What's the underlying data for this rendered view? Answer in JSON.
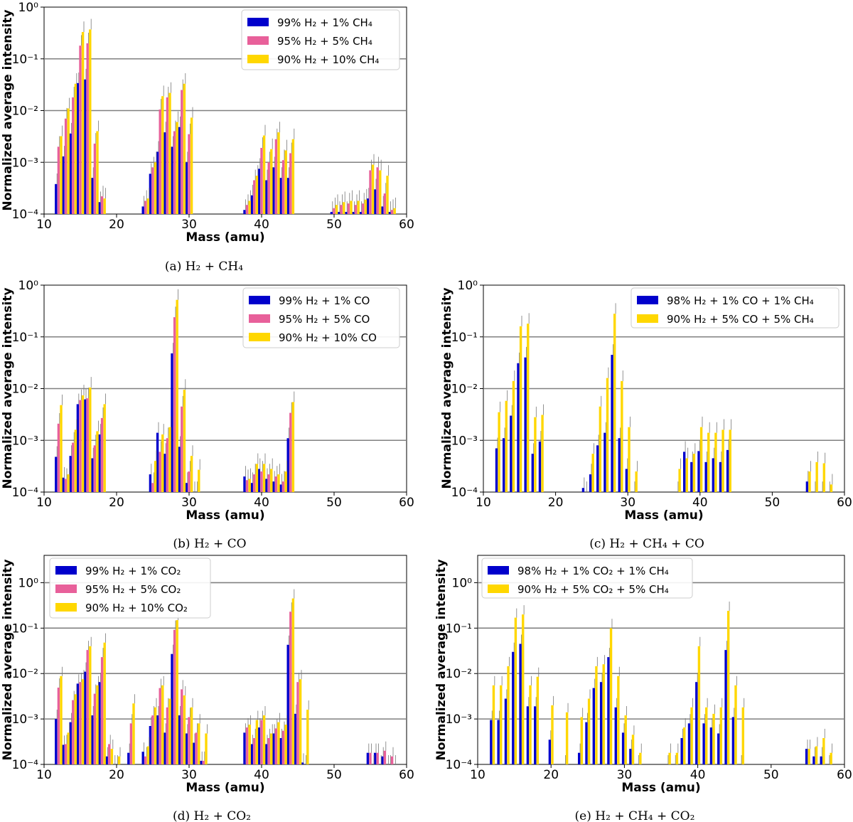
{
  "chart_data": [
    {
      "id": "a",
      "type": "bar",
      "caption": "(a) H₂ + CH₄",
      "xlabel": "Mass (amu)",
      "ylabel": "Normalized average intensity",
      "yscale": "log",
      "xlim": [
        10,
        60
      ],
      "ylim": [
        0.0001,
        1
      ],
      "xticks": [
        "10",
        "20",
        "30",
        "40",
        "50",
        "60"
      ],
      "yticks": [
        "10⁻⁴",
        "10⁻³",
        "10⁻²",
        "10⁻¹",
        "10⁰"
      ],
      "legend_position": "top-right",
      "series": [
        {
          "name": "99% H₂ + 1% CH₄",
          "color": "#0000cc",
          "x": [
            12,
            13,
            14,
            15,
            16,
            17,
            18,
            24,
            25,
            26,
            27,
            28,
            29,
            30,
            38,
            39,
            40,
            41,
            42,
            43,
            44,
            50,
            51,
            52,
            53,
            54,
            55,
            56,
            57,
            58
          ],
          "values": [
            0.00038,
            0.0013,
            0.0036,
            0.034,
            0.04,
            0.0005,
            0.00017,
            0.00014,
            0.0006,
            0.0016,
            0.0038,
            0.002,
            0.0048,
            0.001,
            0.00012,
            0.00023,
            0.00075,
            0.00045,
            0.0008,
            0.0005,
            0.0005,
            0.00011,
            0.00011,
            0.00011,
            0.00011,
            0.00011,
            0.0002,
            0.0003,
            0.00014,
            0.00011
          ]
        },
        {
          "name": "95% H₂ + 5% CH₄",
          "color": "#e8609a",
          "x": [
            12,
            13,
            14,
            15,
            16,
            17,
            18,
            24,
            25,
            26,
            27,
            28,
            29,
            30,
            38,
            39,
            40,
            41,
            42,
            43,
            44,
            50,
            51,
            52,
            53,
            54,
            55,
            56,
            57,
            58
          ],
          "values": [
            0.002,
            0.007,
            0.018,
            0.18,
            0.2,
            0.0023,
            0.00022,
            0.00018,
            0.0008,
            0.0105,
            0.018,
            0.004,
            0.025,
            0.0035,
            0.00015,
            0.00045,
            0.0019,
            0.001,
            0.0028,
            0.0011,
            0.0015,
            0.00013,
            0.00015,
            0.00016,
            0.00015,
            0.00016,
            0.0007,
            0.0008,
            0.00025,
            0.00012
          ]
        },
        {
          "name": "90% H₂ + 10% CH₄",
          "color": "#ffd700",
          "x": [
            12,
            13,
            14,
            15,
            16,
            17,
            18,
            24,
            25,
            26,
            27,
            28,
            29,
            30,
            38,
            39,
            40,
            41,
            42,
            43,
            44,
            50,
            51,
            52,
            53,
            54,
            55,
            56,
            57,
            58
          ],
          "values": [
            0.0032,
            0.011,
            0.033,
            0.33,
            0.37,
            0.004,
            0.0002,
            0.0002,
            0.001,
            0.019,
            0.022,
            0.006,
            0.033,
            0.0073,
            0.00018,
            0.00055,
            0.0033,
            0.0018,
            0.0038,
            0.0017,
            0.0028,
            0.00015,
            0.00017,
            0.00018,
            0.00018,
            0.00019,
            0.0009,
            0.0007,
            0.00055,
            0.00013
          ]
        }
      ]
    },
    {
      "id": "b",
      "type": "bar",
      "caption": "(b) H₂ + CO",
      "xlabel": "Mass (amu)",
      "ylabel": "Normalized average intensity",
      "yscale": "log",
      "xlim": [
        10,
        60
      ],
      "ylim": [
        0.0001,
        1
      ],
      "xticks": [
        "10",
        "20",
        "30",
        "40",
        "50",
        "60"
      ],
      "yticks": [
        "10⁻⁴",
        "10⁻³",
        "10⁻²",
        "10⁻¹",
        "10⁰"
      ],
      "legend_position": "top-right",
      "series": [
        {
          "name": "99% H₂ + 1% CO",
          "color": "#0000cc",
          "x": [
            12,
            13,
            14,
            15,
            16,
            17,
            18,
            25,
            26,
            27,
            28,
            29,
            30,
            31,
            38,
            39,
            40,
            41,
            42,
            43,
            44
          ],
          "values": [
            0.00048,
            0.00019,
            0.0005,
            0.005,
            0.0062,
            0.00045,
            0.0013,
            0.00022,
            0.0014,
            0.00055,
            0.048,
            0.00075,
            0.00015,
            0.0001,
            0.0002,
            0.00015,
            0.00028,
            0.00018,
            0.00016,
            0.00014,
            0.0011
          ]
        },
        {
          "name": "95% H₂ + 5% CO",
          "color": "#e8609a",
          "x": [
            12,
            13,
            14,
            15,
            16,
            17,
            18,
            25,
            26,
            27,
            28,
            29,
            30,
            31,
            38,
            39,
            40,
            41,
            42,
            43,
            44
          ],
          "values": [
            0.0021,
            0.00018,
            0.0009,
            0.006,
            0.0065,
            0.0008,
            0.0027,
            0.00015,
            0.0006,
            0.0011,
            0.24,
            0.0045,
            0.00025,
            0.0001,
            0.00017,
            0.00022,
            0.00025,
            0.00022,
            0.0002,
            0.00016,
            0.0034
          ]
        },
        {
          "name": "90% H₂ + 10% CO",
          "color": "#ffd700",
          "x": [
            12,
            13,
            14,
            15,
            16,
            17,
            18,
            25,
            26,
            27,
            28,
            29,
            30,
            31,
            38,
            39,
            40,
            41,
            42,
            43,
            44
          ],
          "values": [
            0.0048,
            0.00022,
            0.0016,
            0.0074,
            0.0105,
            0.0015,
            0.005,
            0.0004,
            0.0013,
            0.0018,
            0.52,
            0.0095,
            0.0005,
            0.00027,
            0.00018,
            0.00035,
            0.00035,
            0.00028,
            0.00022,
            0.00025,
            0.0055
          ]
        }
      ]
    },
    {
      "id": "c",
      "type": "bar",
      "caption": "(c) H₂ + CH₄ + CO",
      "xlabel": "Mass (amu)",
      "ylabel": "Normalized average intensity",
      "yscale": "log",
      "xlim": [
        10,
        60
      ],
      "ylim": [
        0.0001,
        1
      ],
      "xticks": [
        "10",
        "20",
        "30",
        "40",
        "50",
        "60"
      ],
      "yticks": [
        "10⁻⁴",
        "10⁻³",
        "10⁻²",
        "10⁻¹",
        "10⁰"
      ],
      "legend_position": "top-right",
      "series": [
        {
          "name": "98% H₂ + 1% CO + 1% CH₄",
          "color": "#0000cc",
          "x": [
            12,
            13,
            14,
            15,
            16,
            17,
            18,
            24,
            25,
            26,
            27,
            28,
            29,
            30,
            31,
            37,
            38,
            39,
            40,
            41,
            42,
            43,
            44,
            55,
            56,
            57,
            58
          ],
          "values": [
            0.0007,
            0.0011,
            0.003,
            0.031,
            0.04,
            0.00055,
            0.00095,
            0.00012,
            0.00022,
            0.0008,
            0.0014,
            0.045,
            0.0011,
            0.00028,
            0.0001,
            0.0001,
            0.0006,
            0.00038,
            0.00062,
            0.00038,
            0.00045,
            0.00038,
            0.00065,
            0.00016,
            0.0001,
            0.0001,
            0.0001
          ]
        },
        {
          "name": "90% H₂ + 5% CO + 5% CH₄",
          "color": "#ffd700",
          "x": [
            12,
            13,
            14,
            15,
            16,
            17,
            18,
            24,
            25,
            26,
            27,
            28,
            29,
            30,
            31,
            37,
            38,
            39,
            40,
            41,
            42,
            43,
            44,
            55,
            56,
            57,
            58
          ],
          "values": [
            0.0035,
            0.0058,
            0.014,
            0.16,
            0.18,
            0.0028,
            0.0031,
            0.0001,
            0.00055,
            0.0045,
            0.016,
            0.28,
            0.014,
            0.0018,
            0.00025,
            0.00028,
            0.00045,
            0.00055,
            0.0018,
            0.0014,
            0.0014,
            0.0016,
            0.0016,
            0.00025,
            0.00038,
            0.00036,
            0.00014
          ]
        }
      ]
    },
    {
      "id": "d",
      "type": "bar",
      "caption": "(d) H₂ + CO₂",
      "xlabel": "Mass (amu)",
      "ylabel": "Normalized average intensity",
      "yscale": "log",
      "xlim": [
        10,
        60
      ],
      "ylim": [
        0.0001,
        4
      ],
      "xticks": [
        "10",
        "20",
        "30",
        "40",
        "50",
        "60"
      ],
      "yticks": [
        "10⁻⁴",
        "10⁻³",
        "10⁻²",
        "10⁻¹",
        "10⁰"
      ],
      "legend_position": "top-left",
      "series": [
        {
          "name": "99% H₂ + 1% CO₂",
          "color": "#0000cc",
          "x": [
            12,
            13,
            14,
            15,
            16,
            17,
            18,
            19,
            20,
            22,
            24,
            25,
            26,
            27,
            28,
            29,
            30,
            31,
            32,
            38,
            39,
            40,
            41,
            42,
            43,
            44,
            45,
            46,
            55,
            56,
            57,
            58
          ],
          "values": [
            0.001,
            0.00027,
            0.00085,
            0.006,
            0.011,
            0.0012,
            0.0065,
            0.00015,
            0.0001,
            0.00018,
            0.00019,
            0.0007,
            0.0012,
            0.0005,
            0.027,
            0.0012,
            0.00048,
            0.0003,
            0.00012,
            0.0005,
            0.00028,
            0.00065,
            0.00028,
            0.00048,
            0.00038,
            0.043,
            0.0013,
            0.00011,
            0.00018,
            0.00018,
            0.00015,
            0.0001
          ]
        },
        {
          "name": "95% H₂ + 5% CO₂",
          "color": "#e8609a",
          "x": [
            12,
            13,
            14,
            15,
            16,
            17,
            18,
            19,
            20,
            22,
            24,
            25,
            26,
            27,
            28,
            29,
            30,
            31,
            32,
            38,
            39,
            40,
            41,
            42,
            43,
            44,
            45,
            46,
            55,
            56,
            57,
            58
          ],
          "values": [
            0.0049,
            0.00028,
            0.0026,
            0.0065,
            0.033,
            0.0036,
            0.023,
            0.00028,
            0.0001,
            0.0008,
            0.00015,
            0.0012,
            0.0048,
            0.0018,
            0.092,
            0.0045,
            0.0011,
            0.0005,
            0.00012,
            0.00065,
            0.00038,
            0.00095,
            0.00038,
            0.00062,
            0.00055,
            0.23,
            0.0065,
            0.0001,
            0.00018,
            0.00018,
            0.0002,
            0.00015
          ]
        },
        {
          "name": "90% H₂ + 10% CO₂",
          "color": "#ffd700",
          "x": [
            12,
            13,
            14,
            15,
            16,
            17,
            18,
            19,
            20,
            22,
            24,
            25,
            26,
            27,
            28,
            29,
            30,
            31,
            32,
            38,
            39,
            40,
            41,
            42,
            43,
            44,
            45,
            46,
            55,
            56,
            57,
            58
          ],
          "values": [
            0.0088,
            0.0005,
            0.0035,
            0.0075,
            0.04,
            0.0055,
            0.048,
            0.00022,
            0.00015,
            0.0022,
            0.00025,
            0.0018,
            0.0055,
            0.0028,
            0.15,
            0.0033,
            0.0018,
            0.0008,
            0.00048,
            0.00075,
            0.00095,
            0.0012,
            0.00048,
            0.00085,
            0.00075,
            0.45,
            0.0075,
            0.0016,
            0.0001,
            0.0001,
            0.0001,
            0.0001
          ]
        }
      ]
    },
    {
      "id": "e",
      "type": "bar",
      "caption": "(e) H₂ + CH₄ + CO₂",
      "xlabel": "Mass (amu)",
      "ylabel": "Normalized average intensity",
      "yscale": "log",
      "xlim": [
        10,
        60
      ],
      "ylim": [
        0.0001,
        4
      ],
      "xticks": [
        "10",
        "20",
        "30",
        "40",
        "50",
        "60"
      ],
      "yticks": [
        "10⁻⁴",
        "10⁻³",
        "10⁻²",
        "10⁻¹",
        "10⁰"
      ],
      "legend_position": "top-left",
      "series": [
        {
          "name": "98% H₂ + 1% CO₂ + 1% CH₄",
          "color": "#0000cc",
          "x": [
            12,
            13,
            14,
            15,
            16,
            17,
            18,
            20,
            22,
            24,
            25,
            26,
            27,
            28,
            29,
            30,
            31,
            32,
            36,
            37,
            38,
            39,
            40,
            41,
            42,
            43,
            44,
            45,
            46,
            55,
            56,
            57,
            58
          ],
          "values": [
            0.00095,
            0.00095,
            0.0028,
            0.03,
            0.045,
            0.0019,
            0.0019,
            0.00035,
            0.0001,
            0.00018,
            0.00085,
            0.0048,
            0.0065,
            0.023,
            0.0018,
            0.0005,
            0.00022,
            0.0001,
            0.0001,
            0.0001,
            0.00038,
            0.0008,
            0.0065,
            0.0008,
            0.00065,
            0.00048,
            0.033,
            0.0011,
            0.0001,
            0.00022,
            0.00015,
            0.00015,
            0.0001
          ]
        },
        {
          "name": "90% H₂ + 5% CO₂ + 5% CH₄",
          "color": "#ffd700",
          "x": [
            12,
            13,
            14,
            15,
            16,
            17,
            18,
            20,
            22,
            24,
            25,
            26,
            27,
            28,
            29,
            30,
            31,
            32,
            36,
            37,
            38,
            39,
            40,
            41,
            42,
            43,
            44,
            45,
            46,
            55,
            56,
            57,
            58
          ],
          "values": [
            0.0055,
            0.0055,
            0.0145,
            0.17,
            0.2,
            0.0055,
            0.0085,
            0.002,
            0.0014,
            0.0011,
            0.0028,
            0.0145,
            0.016,
            0.1,
            0.0088,
            0.0012,
            0.00045,
            0.00018,
            0.00018,
            0.00018,
            0.00065,
            0.0018,
            0.04,
            0.0018,
            0.0013,
            0.0018,
            0.24,
            0.0055,
            0.0018,
            0.00022,
            0.00025,
            0.00038,
            0.00018
          ]
        }
      ]
    }
  ]
}
